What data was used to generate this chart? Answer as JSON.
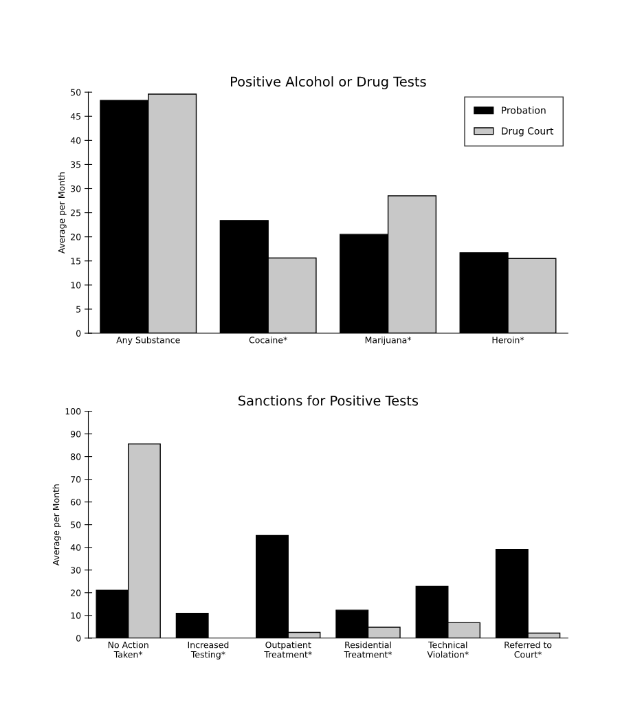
{
  "chart_data": [
    {
      "type": "bar",
      "title": "Positive Alcohol or Drug Tests",
      "ylabel": "Average per Month",
      "categories": [
        "Any Substance",
        "Cocaine*",
        "Marijuana*",
        "Heroin*"
      ],
      "series": [
        {
          "name": "Probation",
          "color": "#000000",
          "values": [
            48.3,
            23.4,
            20.5,
            16.7
          ]
        },
        {
          "name": "Drug Court",
          "color": "#c8c8c8",
          "values": [
            49.6,
            15.6,
            28.5,
            15.5
          ]
        }
      ],
      "ylim": [
        0,
        50
      ],
      "yticks": [
        0,
        5,
        10,
        15,
        20,
        25,
        30,
        35,
        40,
        45,
        50
      ],
      "grid": false,
      "legend": "top right"
    },
    {
      "type": "bar",
      "title": "Sanctions for Positive Tests",
      "ylabel": "Average per Month",
      "categories": [
        "No Action\nTaken*",
        "Increased\nTesting*",
        "Outpatient\nTreatment*",
        "Residential\nTreatment*",
        "Technical\nViolation*",
        "Referred to\nCourt*"
      ],
      "series": [
        {
          "color": "#000000",
          "values": [
            21.1,
            10.9,
            45.2,
            12.3,
            22.8,
            39.1
          ]
        },
        {
          "color": "#c8c8c8",
          "values": [
            85.6,
            null,
            2.5,
            4.8,
            6.8,
            2.2
          ]
        }
      ],
      "ylim": [
        0,
        100
      ],
      "yticks": [
        0,
        10,
        20,
        30,
        40,
        50,
        60,
        70,
        80,
        90,
        100
      ],
      "grid": false,
      "legend": false
    }
  ]
}
